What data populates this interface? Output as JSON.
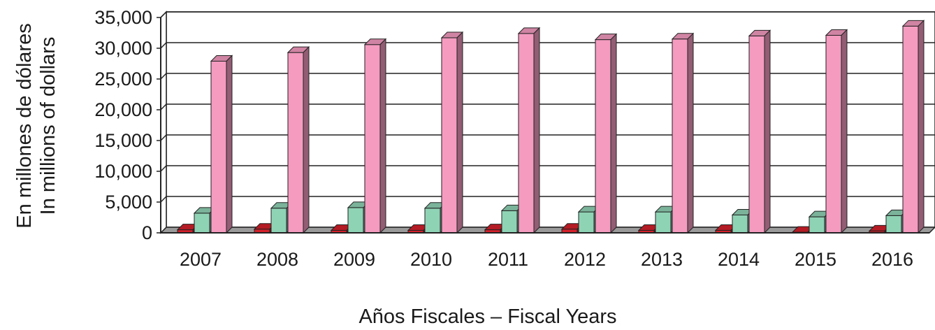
{
  "chart_data": {
    "type": "bar",
    "title": "",
    "xlabel": "Años Fiscales – Fiscal Years",
    "ylabel_lines": [
      "En millones de dólares",
      "In millions of dollars"
    ],
    "categories": [
      "2007",
      "2008",
      "2009",
      "2010",
      "2011",
      "2012",
      "2013",
      "2014",
      "2015",
      "2016"
    ],
    "y_ticks": [
      "0",
      "5,000",
      "10,000",
      "15,000",
      "20,000",
      "25,000",
      "30,000",
      "35,000"
    ],
    "ylim": [
      0,
      35000
    ],
    "grid": true,
    "legend": "none",
    "series": [
      {
        "color": "#d4202a",
        "values": [
          500,
          600,
          400,
          400,
          500,
          600,
          400,
          400,
          100,
          300
        ]
      },
      {
        "color": "#8fd3b5",
        "values": [
          3200,
          4000,
          4100,
          4000,
          3600,
          3400,
          3400,
          2900,
          2600,
          2800
        ]
      },
      {
        "color": "#f59bc0",
        "values": [
          27900,
          29300,
          30600,
          31700,
          32400,
          31400,
          31500,
          32000,
          32100,
          33600
        ]
      }
    ]
  }
}
